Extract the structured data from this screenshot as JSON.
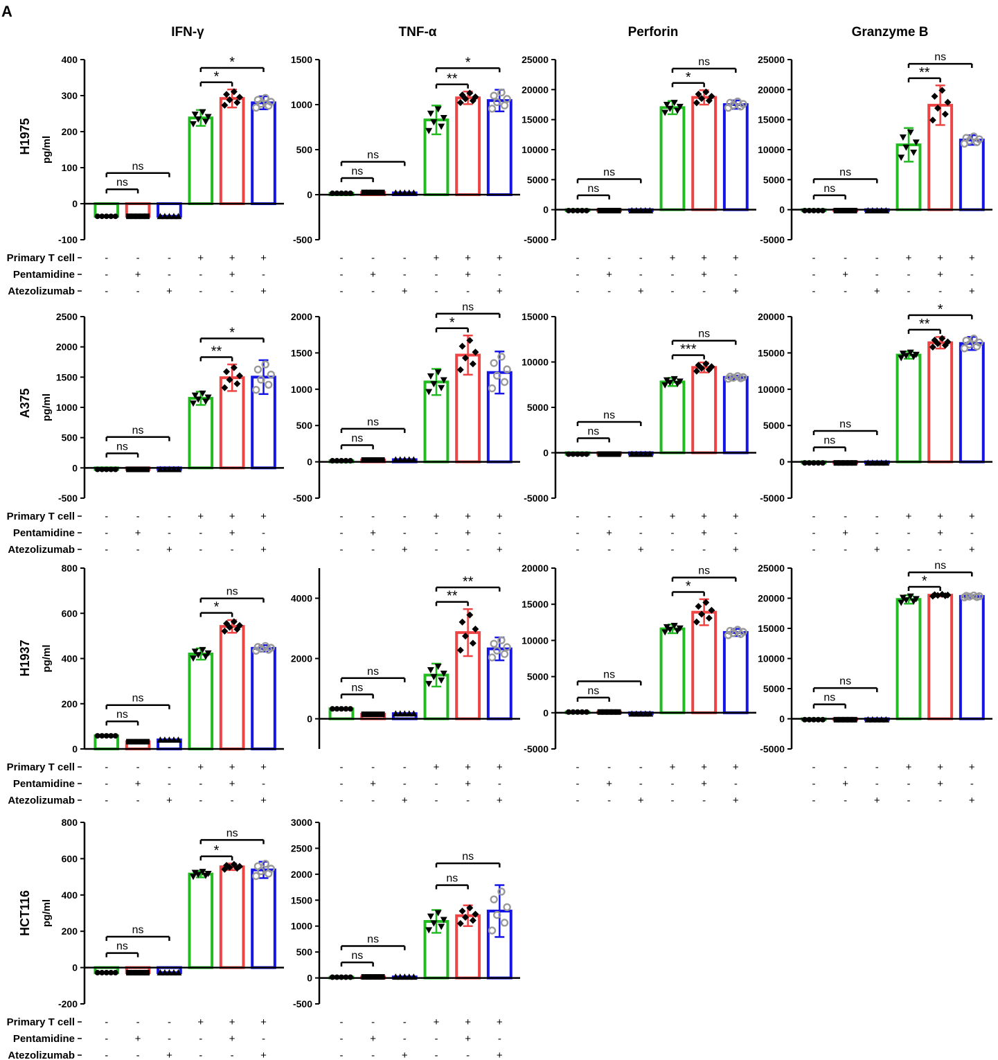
{
  "figure": {
    "panel_letter": "A",
    "cytokines": [
      "IFN-γ",
      "TNF-α",
      "Perforin",
      "Granzyme B"
    ],
    "cell_lines": [
      "H1975",
      "A375",
      "H1937",
      "HCT116"
    ],
    "y_unit": "pg/ml",
    "condition_labels": [
      "Primary T cell",
      "Pentamidine",
      "Atezolizumab"
    ],
    "condition_signs": [
      [
        "-",
        "-",
        "-",
        "+",
        "+",
        "+"
      ],
      [
        "-",
        "+",
        "-",
        "-",
        "+",
        "-"
      ],
      [
        "-",
        "-",
        "+",
        "-",
        "-",
        "+"
      ]
    ],
    "colors": {
      "group1": "#22bb22",
      "group2": "#ee4444",
      "group3": "#1515e6",
      "axis": "#000000",
      "hollow_marker": "#999999"
    }
  },
  "chart_data": [
    {
      "id": "H1975-IFN",
      "type": "bar",
      "row": "H1975",
      "column": "IFN-γ",
      "ylabel": "pg/ml",
      "ylim": [
        -100,
        400
      ],
      "ticks": [
        -100,
        0,
        100,
        200,
        300,
        400
      ],
      "show_condition_labels": true,
      "values": [
        -35,
        -35,
        -35,
        238,
        292,
        280
      ],
      "errors": [
        null,
        null,
        null,
        22,
        25,
        18
      ],
      "brackets": [
        {
          "from": 0,
          "to": 1,
          "label": "ns"
        },
        {
          "from": 0,
          "to": 2,
          "label": "ns"
        },
        {
          "from": 3,
          "to": 4,
          "label": "*"
        },
        {
          "from": 3,
          "to": 5,
          "label": "*"
        }
      ]
    },
    {
      "id": "H1975-TNF",
      "type": "bar",
      "row": "H1975",
      "column": "TNF-α",
      "ylim": [
        -500,
        1500
      ],
      "ticks": [
        -500,
        0,
        500,
        1000,
        1500
      ],
      "show_condition_labels": false,
      "values": [
        15,
        25,
        20,
        830,
        1075,
        1045
      ],
      "errors": [
        null,
        null,
        null,
        160,
        70,
        120
      ],
      "brackets": [
        {
          "from": 0,
          "to": 1,
          "label": "ns"
        },
        {
          "from": 0,
          "to": 2,
          "label": "ns"
        },
        {
          "from": 3,
          "to": 4,
          "label": "**"
        },
        {
          "from": 3,
          "to": 5,
          "label": "*"
        }
      ]
    },
    {
      "id": "H1975-Perforin",
      "type": "bar",
      "row": "H1975",
      "column": "Perforin",
      "ylim": [
        -5000,
        25000
      ],
      "ticks": [
        -5000,
        0,
        5000,
        10000,
        15000,
        20000,
        25000
      ],
      "show_condition_labels": false,
      "values": [
        -150,
        -150,
        -150,
        17000,
        18700,
        17500
      ],
      "errors": [
        null,
        null,
        null,
        1100,
        1200,
        700
      ],
      "brackets": [
        {
          "from": 0,
          "to": 1,
          "label": "ns"
        },
        {
          "from": 0,
          "to": 2,
          "label": "ns"
        },
        {
          "from": 3,
          "to": 4,
          "label": "*"
        },
        {
          "from": 3,
          "to": 5,
          "label": "ns"
        }
      ]
    },
    {
      "id": "H1975-GranzymeB",
      "type": "bar",
      "row": "H1975",
      "column": "Granzyme B",
      "ylim": [
        -5000,
        25000
      ],
      "ticks": [
        -5000,
        0,
        5000,
        10000,
        15000,
        20000,
        25000
      ],
      "show_condition_labels": false,
      "values": [
        -150,
        -150,
        -150,
        10800,
        17400,
        11600
      ],
      "errors": [
        null,
        null,
        null,
        2800,
        3300,
        800
      ],
      "brackets": [
        {
          "from": 0,
          "to": 1,
          "label": "ns"
        },
        {
          "from": 0,
          "to": 2,
          "label": "ns"
        },
        {
          "from": 3,
          "to": 4,
          "label": "**"
        },
        {
          "from": 3,
          "to": 5,
          "label": "ns"
        }
      ]
    },
    {
      "id": "A375-IFN",
      "type": "bar",
      "row": "A375",
      "column": "IFN-γ",
      "ylabel": "pg/ml",
      "ylim": [
        -500,
        2500
      ],
      "ticks": [
        -500,
        0,
        500,
        1000,
        1500,
        2000,
        2500
      ],
      "show_condition_labels": true,
      "values": [
        -25,
        -25,
        -25,
        1150,
        1490,
        1500
      ],
      "errors": [
        null,
        null,
        null,
        110,
        220,
        280
      ],
      "brackets": [
        {
          "from": 0,
          "to": 1,
          "label": "ns"
        },
        {
          "from": 0,
          "to": 2,
          "label": "ns"
        },
        {
          "from": 3,
          "to": 4,
          "label": "**"
        },
        {
          "from": 3,
          "to": 5,
          "label": "*"
        }
      ]
    },
    {
      "id": "A375-TNF",
      "type": "bar",
      "row": "A375",
      "column": "TNF-α",
      "ylim": [
        -500,
        2000
      ],
      "ticks": [
        -500,
        0,
        500,
        1000,
        1500,
        2000
      ],
      "show_condition_labels": false,
      "values": [
        15,
        25,
        30,
        1100,
        1470,
        1230
      ],
      "errors": [
        null,
        null,
        null,
        180,
        270,
        290
      ],
      "brackets": [
        {
          "from": 0,
          "to": 1,
          "label": "ns"
        },
        {
          "from": 0,
          "to": 2,
          "label": "ns"
        },
        {
          "from": 3,
          "to": 4,
          "label": "*"
        },
        {
          "from": 3,
          "to": 5,
          "label": "ns"
        }
      ]
    },
    {
      "id": "A375-Perforin",
      "type": "bar",
      "row": "A375",
      "column": "Perforin",
      "ylim": [
        -5000,
        15000
      ],
      "ticks": [
        -5000,
        0,
        5000,
        10000,
        15000
      ],
      "show_condition_labels": false,
      "values": [
        -150,
        -150,
        -150,
        7800,
        9400,
        8300
      ],
      "errors": [
        null,
        null,
        null,
        450,
        550,
        200
      ],
      "brackets": [
        {
          "from": 0,
          "to": 1,
          "label": "ns"
        },
        {
          "from": 0,
          "to": 2,
          "label": "ns"
        },
        {
          "from": 3,
          "to": 4,
          "label": "***"
        },
        {
          "from": 3,
          "to": 5,
          "label": "ns"
        }
      ]
    },
    {
      "id": "A375-GranzymeB",
      "type": "bar",
      "row": "A375",
      "column": "Granzyme B",
      "ylim": [
        -5000,
        20000
      ],
      "ticks": [
        -5000,
        0,
        5000,
        10000,
        15000,
        20000
      ],
      "show_condition_labels": false,
      "values": [
        -150,
        -150,
        -150,
        14700,
        16400,
        16300
      ],
      "errors": [
        null,
        null,
        null,
        500,
        800,
        900
      ],
      "brackets": [
        {
          "from": 0,
          "to": 1,
          "label": "ns"
        },
        {
          "from": 0,
          "to": 2,
          "label": "ns"
        },
        {
          "from": 3,
          "to": 4,
          "label": "**"
        },
        {
          "from": 3,
          "to": 5,
          "label": "*"
        }
      ]
    },
    {
      "id": "H1937-IFN",
      "type": "bar",
      "row": "H1937",
      "column": "IFN-γ",
      "ylabel": "pg/ml",
      "ylim": [
        0,
        800
      ],
      "ticks": [
        0,
        200,
        400,
        600,
        800
      ],
      "show_condition_labels": true,
      "values": [
        58,
        32,
        40,
        420,
        542,
        445
      ],
      "errors": [
        null,
        null,
        null,
        25,
        28,
        14
      ],
      "brackets": [
        {
          "from": 0,
          "to": 1,
          "label": "ns"
        },
        {
          "from": 0,
          "to": 2,
          "label": "ns"
        },
        {
          "from": 3,
          "to": 4,
          "label": "*"
        },
        {
          "from": 3,
          "to": 5,
          "label": "ns"
        }
      ]
    },
    {
      "id": "H1937-TNF",
      "type": "bar",
      "row": "H1937",
      "column": "TNF-α",
      "ylim": [
        -1000,
        5000
      ],
      "ticks": [
        0,
        2000,
        4000
      ],
      "show_condition_labels": false,
      "values": [
        330,
        150,
        170,
        1450,
        2860,
        2320
      ],
      "errors": [
        null,
        null,
        null,
        380,
        780,
        380
      ],
      "brackets": [
        {
          "from": 0,
          "to": 1,
          "label": "ns"
        },
        {
          "from": 0,
          "to": 2,
          "label": "ns"
        },
        {
          "from": 3,
          "to": 4,
          "label": "**"
        },
        {
          "from": 3,
          "to": 5,
          "label": "**"
        }
      ]
    },
    {
      "id": "H1937-Perforin",
      "type": "bar",
      "row": "H1937",
      "column": "Perforin",
      "ylim": [
        -5000,
        20000
      ],
      "ticks": [
        -5000,
        0,
        5000,
        10000,
        15000,
        20000
      ],
      "show_condition_labels": false,
      "values": [
        100,
        100,
        -150,
        11600,
        13900,
        11100
      ],
      "errors": [
        null,
        null,
        null,
        600,
        1800,
        500
      ],
      "brackets": [
        {
          "from": 0,
          "to": 1,
          "label": "ns"
        },
        {
          "from": 0,
          "to": 2,
          "label": "ns"
        },
        {
          "from": 3,
          "to": 4,
          "label": "*"
        },
        {
          "from": 3,
          "to": 5,
          "label": "ns"
        }
      ]
    },
    {
      "id": "H1937-GranzymeB",
      "type": "bar",
      "row": "H1937",
      "column": "Granzyme B",
      "ylim": [
        -5000,
        25000
      ],
      "ticks": [
        -5000,
        0,
        5000,
        10000,
        15000,
        20000,
        25000
      ],
      "show_condition_labels": false,
      "values": [
        -150,
        -150,
        -150,
        19800,
        20500,
        20300
      ],
      "errors": [
        null,
        null,
        null,
        700,
        200,
        200
      ],
      "brackets": [
        {
          "from": 0,
          "to": 1,
          "label": "ns"
        },
        {
          "from": 0,
          "to": 2,
          "label": "ns"
        },
        {
          "from": 3,
          "to": 4,
          "label": "*"
        },
        {
          "from": 3,
          "to": 5,
          "label": "ns"
        }
      ]
    },
    {
      "id": "HCT116-IFN",
      "type": "bar",
      "row": "HCT116",
      "column": "IFN-γ",
      "ylabel": "pg/ml",
      "ylim": [
        -200,
        800
      ],
      "ticks": [
        -200,
        0,
        200,
        400,
        600,
        800
      ],
      "show_condition_labels": true,
      "values": [
        -28,
        -28,
        -28,
        515,
        555,
        538
      ],
      "errors": [
        null,
        null,
        null,
        18,
        18,
        45
      ],
      "brackets": [
        {
          "from": 0,
          "to": 1,
          "label": "ns"
        },
        {
          "from": 0,
          "to": 2,
          "label": "ns"
        },
        {
          "from": 3,
          "to": 4,
          "label": "*"
        },
        {
          "from": 3,
          "to": 5,
          "label": "ns"
        }
      ]
    },
    {
      "id": "HCT116-TNF",
      "type": "bar",
      "row": "HCT116",
      "column": "TNF-α",
      "ylim": [
        -500,
        3000
      ],
      "ticks": [
        -500,
        0,
        500,
        1000,
        1500,
        2000,
        2500,
        3000
      ],
      "show_condition_labels": false,
      "values": [
        15,
        20,
        20,
        1090,
        1200,
        1290
      ],
      "errors": [
        null,
        null,
        null,
        220,
        200,
        500
      ],
      "brackets": [
        {
          "from": 0,
          "to": 1,
          "label": "ns"
        },
        {
          "from": 0,
          "to": 2,
          "label": "ns"
        },
        {
          "from": 3,
          "to": 4,
          "label": "ns"
        },
        {
          "from": 3,
          "to": 5,
          "label": "ns"
        }
      ]
    }
  ]
}
